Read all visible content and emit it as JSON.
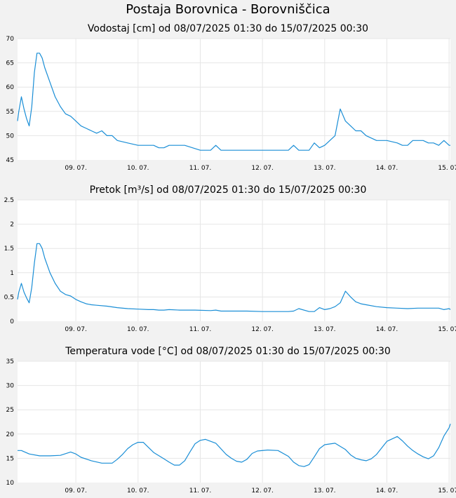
{
  "page_title": "Postaja Borovnica - Borovniščica",
  "chart_data": [
    {
      "type": "line",
      "title": "Vodostaj [cm] od 08/07/2025 01:30 do 15/07/2025 00:30",
      "x_tick_labels": [
        "09. 07.",
        "10. 07.",
        "11. 07.",
        "12. 07.",
        "13. 07.",
        "14. 07.",
        "15. 07."
      ],
      "y_tick_labels": [
        "45",
        "50",
        "55",
        "60",
        "65",
        "70"
      ],
      "ylim": [
        45,
        70
      ],
      "xlim_hours": [
        1.5,
        168.5
      ],
      "grid": true,
      "line_color": "#1a8ed6",
      "series": [
        {
          "x_hours": [
            1.5,
            2,
            3,
            4,
            5,
            6,
            7,
            8,
            9,
            10,
            11,
            12,
            14,
            16,
            18,
            20,
            22,
            24,
            26,
            28,
            30,
            32,
            34,
            36,
            38,
            40,
            44,
            48,
            52,
            54,
            56,
            58,
            60,
            62,
            66,
            72,
            76,
            78,
            80,
            82,
            84,
            86,
            90,
            96,
            102,
            106,
            108,
            110,
            114,
            116,
            118,
            120,
            122,
            124,
            126,
            128,
            130,
            132,
            134,
            136,
            140,
            144,
            148,
            150,
            152,
            154,
            156,
            158,
            160,
            162,
            164,
            166,
            168,
            168.5
          ],
          "values": [
            53,
            55,
            58,
            55.5,
            53.5,
            52,
            56,
            63,
            67,
            67,
            66,
            64,
            61,
            58,
            56,
            54.5,
            54,
            53,
            52,
            51.5,
            51,
            50.5,
            51,
            50,
            50,
            49,
            48.5,
            48,
            48,
            48,
            47.5,
            47.5,
            48,
            48,
            48,
            47,
            47,
            48,
            47,
            47,
            47,
            47,
            47,
            47,
            47,
            47,
            48,
            47,
            47,
            48.5,
            47.5,
            48,
            49,
            50,
            55.5,
            53,
            52,
            51,
            51,
            50,
            49,
            49,
            48.5,
            48,
            48,
            49,
            49,
            49,
            48.5,
            48.5,
            48,
            49,
            48,
            48
          ]
        }
      ]
    },
    {
      "type": "line",
      "title": "Pretok [m³/s] od 08/07/2025 01:30 do 15/07/2025 00:30",
      "x_tick_labels": [
        "09. 07.",
        "10. 07.",
        "11. 07.",
        "12. 07.",
        "13. 07.",
        "14. 07.",
        "15. 07."
      ],
      "y_tick_labels": [
        "0",
        "0.5",
        "1",
        "1.5",
        "2",
        "2.5"
      ],
      "ylim": [
        0,
        2.5
      ],
      "xlim_hours": [
        1.5,
        168.5
      ],
      "grid": true,
      "line_color": "#1a8ed6",
      "series": [
        {
          "x_hours": [
            1.5,
            2,
            3,
            4,
            5,
            6,
            7,
            8,
            9,
            10,
            11,
            12,
            14,
            16,
            18,
            20,
            22,
            24,
            26,
            28,
            30,
            32,
            36,
            40,
            44,
            48,
            52,
            54,
            56,
            58,
            60,
            64,
            70,
            76,
            78,
            80,
            84,
            90,
            96,
            102,
            106,
            108,
            110,
            114,
            116,
            118,
            120,
            122,
            124,
            126,
            128,
            130,
            132,
            134,
            136,
            140,
            144,
            148,
            152,
            156,
            160,
            164,
            166,
            168,
            168.5
          ],
          "values": [
            0.45,
            0.6,
            0.78,
            0.6,
            0.48,
            0.38,
            0.7,
            1.2,
            1.6,
            1.6,
            1.5,
            1.3,
            1.0,
            0.78,
            0.62,
            0.55,
            0.52,
            0.45,
            0.4,
            0.36,
            0.34,
            0.33,
            0.31,
            0.28,
            0.26,
            0.25,
            0.24,
            0.24,
            0.23,
            0.23,
            0.24,
            0.23,
            0.23,
            0.22,
            0.23,
            0.21,
            0.21,
            0.21,
            0.2,
            0.2,
            0.2,
            0.21,
            0.26,
            0.2,
            0.2,
            0.28,
            0.24,
            0.26,
            0.3,
            0.38,
            0.62,
            0.5,
            0.4,
            0.36,
            0.34,
            0.3,
            0.28,
            0.27,
            0.26,
            0.27,
            0.27,
            0.27,
            0.24,
            0.26,
            0.24
          ]
        }
      ]
    },
    {
      "type": "line",
      "title": "Temperatura vode [°C] od 08/07/2025 01:30 do 15/07/2025 00:30",
      "x_tick_labels": [
        "09. 07.",
        "10. 07.",
        "11. 07.",
        "12. 07.",
        "13. 07.",
        "14. 07.",
        "15. 07."
      ],
      "y_tick_labels": [
        "10",
        "15",
        "20",
        "25",
        "30",
        "35"
      ],
      "ylim": [
        10,
        35
      ],
      "xlim_hours": [
        1.5,
        168.5
      ],
      "grid": true,
      "line_color": "#1a8ed6",
      "series": [
        {
          "x_hours": [
            1.5,
            3,
            6,
            10,
            14,
            18,
            22,
            24,
            26,
            30,
            34,
            38,
            40,
            42,
            44,
            46,
            48,
            50,
            54,
            58,
            60,
            62,
            64,
            66,
            68,
            70,
            72,
            74,
            78,
            82,
            84,
            86,
            88,
            90,
            92,
            94,
            98,
            102,
            106,
            108,
            110,
            112,
            114,
            116,
            118,
            120,
            124,
            128,
            130,
            132,
            134,
            136,
            138,
            140,
            144,
            148,
            150,
            152,
            154,
            156,
            158,
            160,
            162,
            164,
            166,
            168,
            168.5
          ],
          "values": [
            16.6,
            16.6,
            15.9,
            15.5,
            15.5,
            15.6,
            16.3,
            15.9,
            15.2,
            14.5,
            14.0,
            14.0,
            14.8,
            15.8,
            17.0,
            17.8,
            18.3,
            18.3,
            16.2,
            14.9,
            14.2,
            13.6,
            13.6,
            14.5,
            16.3,
            18.0,
            18.7,
            18.9,
            18.1,
            15.8,
            15.0,
            14.4,
            14.2,
            14.8,
            16.0,
            16.5,
            16.7,
            16.6,
            15.4,
            14.2,
            13.5,
            13.3,
            13.7,
            15.3,
            17.0,
            17.8,
            18.1,
            16.8,
            15.7,
            15.0,
            14.7,
            14.5,
            14.9,
            15.8,
            18.5,
            19.5,
            18.6,
            17.5,
            16.6,
            15.9,
            15.3,
            14.9,
            15.5,
            17.2,
            19.6,
            21.3,
            22.1
          ]
        }
      ]
    }
  ]
}
